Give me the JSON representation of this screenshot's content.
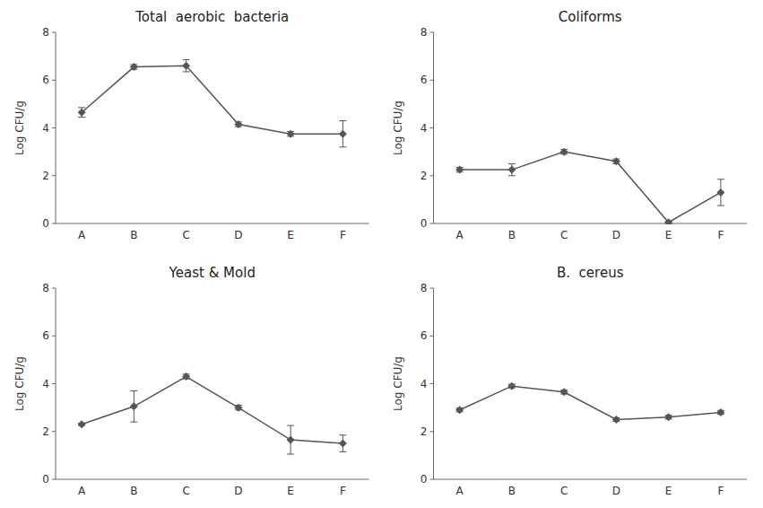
{
  "chart_data": [
    {
      "type": "line",
      "title": "Total  aerobic  bacteria",
      "categories": [
        "A",
        "B",
        "C",
        "D",
        "E",
        "F"
      ],
      "values": [
        4.65,
        6.55,
        6.6,
        4.15,
        3.75,
        3.75
      ],
      "errors": [
        0.2,
        0.1,
        0.25,
        0.1,
        0.1,
        0.55
      ],
      "ylim": [
        0,
        8
      ],
      "yticks": [
        0,
        2,
        4,
        6,
        8
      ],
      "ylabel": "Log CFU/g",
      "color": "#555555",
      "marker": "diamond",
      "grid": false
    },
    {
      "type": "line",
      "title": "Coliforms",
      "categories": [
        "A",
        "B",
        "C",
        "D",
        "E",
        "F"
      ],
      "values": [
        2.25,
        2.25,
        3.0,
        2.6,
        0.05,
        1.3
      ],
      "errors": [
        0.1,
        0.25,
        0.1,
        0.1,
        0.05,
        0.55
      ],
      "ylim": [
        0,
        8
      ],
      "yticks": [
        0,
        2,
        4,
        6,
        8
      ],
      "ylabel": "Log CFU/g",
      "color": "#555555",
      "marker": "diamond",
      "grid": false
    },
    {
      "type": "line",
      "title": "Yeast & Mold",
      "categories": [
        "A",
        "B",
        "C",
        "D",
        "E",
        "F"
      ],
      "values": [
        2.3,
        3.05,
        4.3,
        3.0,
        1.65,
        1.5
      ],
      "errors": [
        0.05,
        0.65,
        0.1,
        0.1,
        0.6,
        0.35
      ],
      "ylim": [
        0,
        8
      ],
      "yticks": [
        0,
        2,
        4,
        6,
        8
      ],
      "ylabel": "Log CFU/g",
      "color": "#555555",
      "marker": "diamond",
      "grid": false
    },
    {
      "type": "line",
      "title": "B.  cereus",
      "categories": [
        "A",
        "B",
        "C",
        "D",
        "E",
        "F"
      ],
      "values": [
        2.9,
        3.9,
        3.65,
        2.5,
        2.6,
        2.8
      ],
      "errors": [
        0.08,
        0.08,
        0.08,
        0.08,
        0.08,
        0.08
      ],
      "ylim": [
        0,
        8
      ],
      "yticks": [
        0,
        2,
        4,
        6,
        8
      ],
      "ylabel": "Log CFU/g",
      "color": "#555555",
      "marker": "diamond",
      "grid": false
    }
  ]
}
